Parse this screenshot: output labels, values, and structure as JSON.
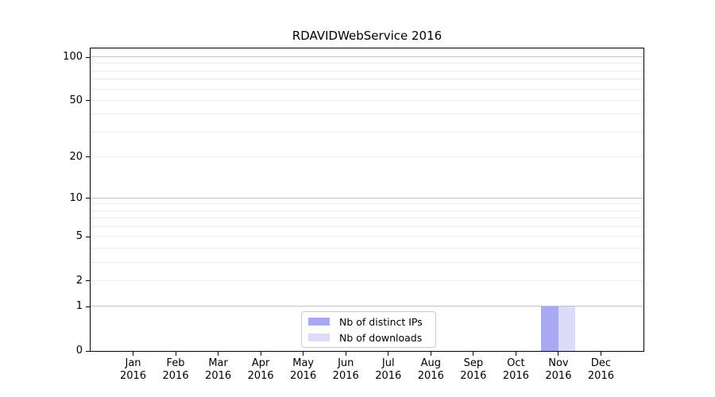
{
  "title": "RDAVIDWebService 2016",
  "colors": {
    "distinct_ips_bar": "#a8a8f5",
    "downloads_bar": "#dcdcfa",
    "major_gridline": "#c3c3c3",
    "minor_gridline": "#ededed",
    "axis": "#000000",
    "legend_border": "#cccccc"
  },
  "chart_data": {
    "type": "bar",
    "title": "RDAVIDWebService 2016",
    "xlabel": "",
    "ylabel": "",
    "categories": [
      "Jan 2016",
      "Feb 2016",
      "Mar 2016",
      "Apr 2016",
      "May 2016",
      "Jun 2016",
      "Jul 2016",
      "Aug 2016",
      "Sep 2016",
      "Oct 2016",
      "Nov 2016",
      "Dec 2016"
    ],
    "series": [
      {
        "name": "Nb of distinct IPs",
        "color": "#a8a8f5",
        "values": [
          0,
          0,
          0,
          0,
          0,
          0,
          0,
          0,
          0,
          0,
          1,
          0
        ]
      },
      {
        "name": "Nb of downloads",
        "color": "#dcdcfa",
        "values": [
          0,
          0,
          0,
          0,
          0,
          0,
          0,
          0,
          0,
          0,
          1,
          0
        ]
      }
    ],
    "yscale": "log1p",
    "yticks": [
      0,
      1,
      2,
      5,
      10,
      20,
      50,
      100
    ],
    "ytick_labels": [
      "0",
      "1",
      "2",
      "5",
      "10",
      "20",
      "50",
      "100"
    ],
    "ylim": [
      0,
      115
    ],
    "grid": true,
    "legend_position": "lower center"
  },
  "legend": {
    "item1": "Nb of distinct IPs",
    "item2": "Nb of downloads"
  }
}
